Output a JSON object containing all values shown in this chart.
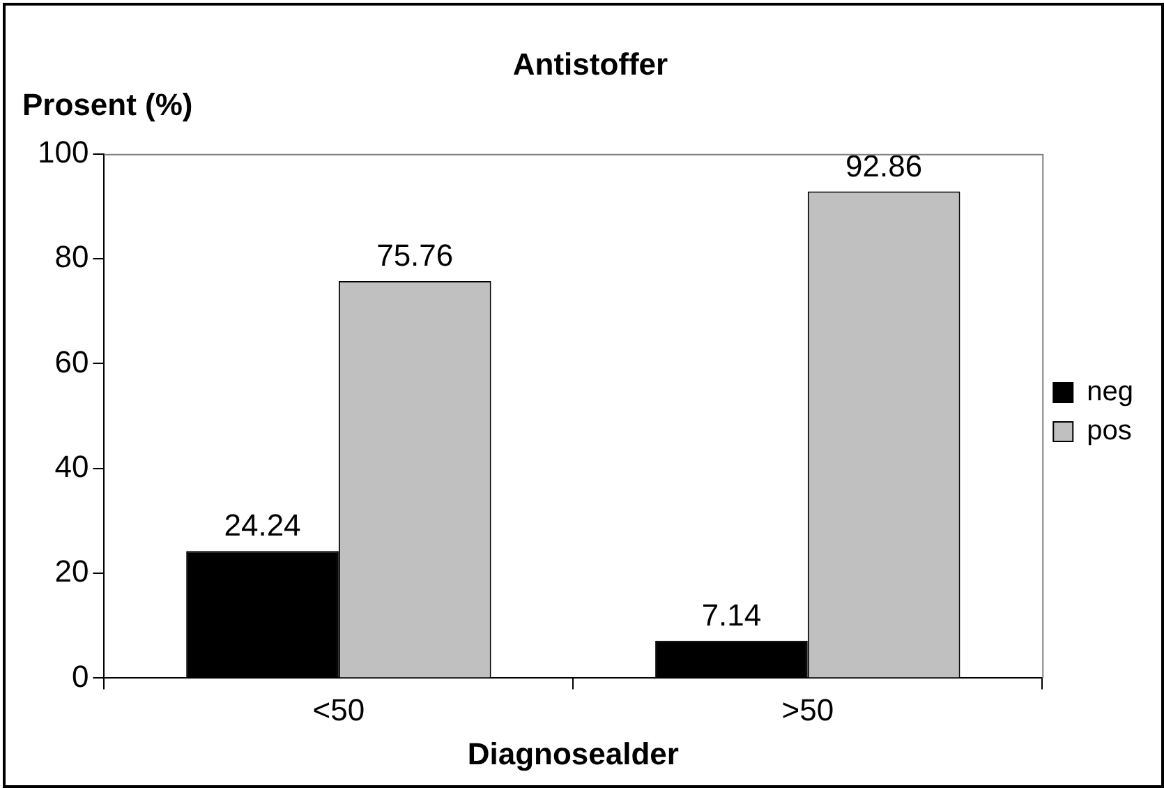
{
  "chart_data": {
    "type": "bar",
    "title": "Antistoffer",
    "ylabel": "Prosent (%)",
    "xlabel": "Diagnosealder",
    "categories": [
      "<50",
      ">50"
    ],
    "series": [
      {
        "name": "neg",
        "color": "#000000",
        "values": [
          24.24,
          7.14
        ]
      },
      {
        "name": "pos",
        "color": "#c0c0c0",
        "values": [
          75.76,
          92.86
        ]
      }
    ],
    "ylim": [
      0,
      100
    ],
    "yticks": [
      0,
      20,
      40,
      60,
      80,
      100
    ],
    "grid": false,
    "legend": "right",
    "data_labels": true
  }
}
